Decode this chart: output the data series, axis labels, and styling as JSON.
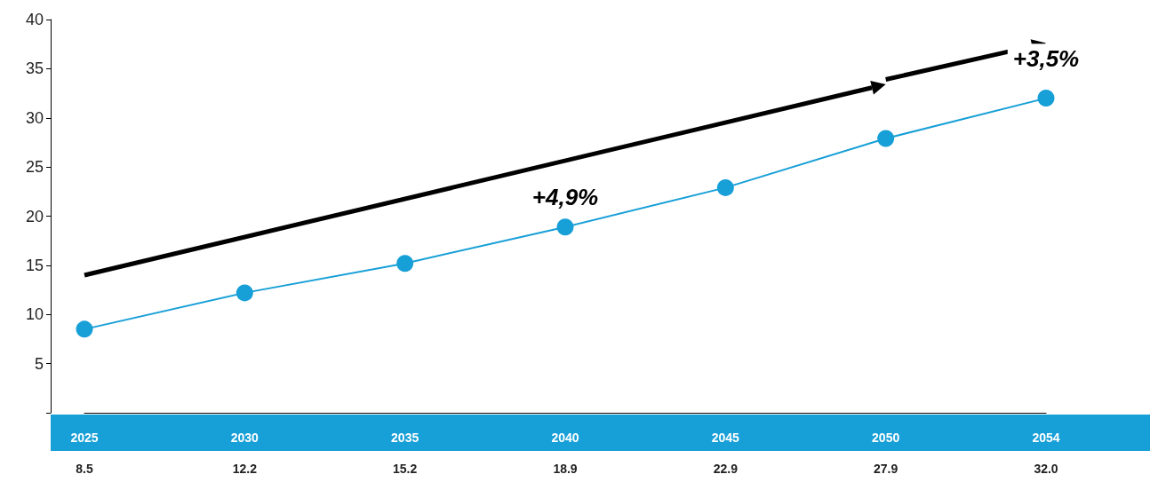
{
  "chart_data": {
    "type": "line",
    "categories": [
      "2025",
      "2030",
      "2035",
      "2040",
      "2045",
      "2050",
      "2054"
    ],
    "series": [
      {
        "color": "#179fd7",
        "values": [
          8.5,
          12.2,
          15.2,
          18.9,
          22.9,
          27.9,
          32.0
        ],
        "value_labels": [
          "8.5",
          "12.2",
          "15.2",
          "18.9",
          "22.9",
          "27.9",
          "32.0"
        ]
      }
    ],
    "ylim": [
      0,
      40
    ],
    "yticks": [
      {
        "value": 0,
        "label": null
      },
      5,
      10,
      15,
      20,
      25,
      30,
      35,
      40
    ],
    "annotations": [
      "+4,9%",
      "+3,5%"
    ],
    "grid": false,
    "marker": "circle",
    "line_style": "solid"
  }
}
